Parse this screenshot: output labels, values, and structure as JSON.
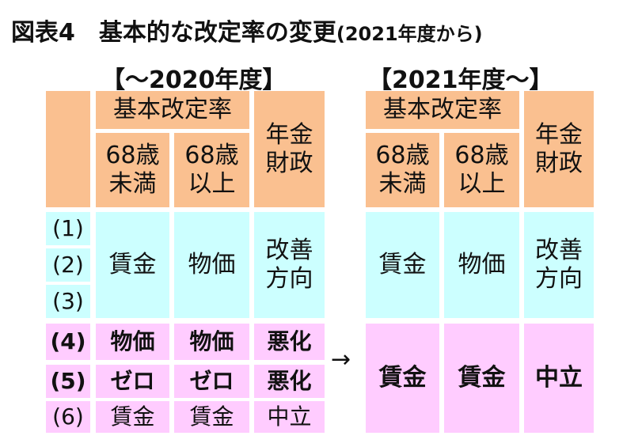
{
  "title": {
    "main": "図表4　基本的な改定率の変更",
    "tail": "(2021年度から)"
  },
  "left": {
    "period": "【～2020年度】",
    "header_group": "基本改定率",
    "col_under68": [
      "68歳",
      "未満"
    ],
    "col_over68": [
      "68歳",
      "以上"
    ],
    "col_finance": [
      "年金",
      "財政"
    ],
    "rows_1_3": {
      "labels": [
        "(1)",
        "(2)",
        "(3)"
      ],
      "under68": "賃金",
      "over68": "物価",
      "finance": [
        "改善",
        "方向"
      ]
    },
    "row4": {
      "label": "(4)",
      "under68": "物価",
      "over68": "物価",
      "finance": "悪化"
    },
    "row5": {
      "label": "(5)",
      "under68": "ゼロ",
      "over68": "ゼロ",
      "finance": "悪化"
    },
    "row6": {
      "label": "(6)",
      "under68": "賃金",
      "over68": "賃金",
      "finance": "中立"
    }
  },
  "arrow": "→",
  "right": {
    "period": "【2021年度～】",
    "header_group": "基本改定率",
    "col_under68": [
      "68歳",
      "未満"
    ],
    "col_over68": [
      "68歳",
      "以上"
    ],
    "col_finance": [
      "年金",
      "財政"
    ],
    "rows_1_3": {
      "under68": "賃金",
      "over68": "物価",
      "finance": [
        "改善",
        "方向"
      ]
    },
    "rows_4_6": {
      "under68": "賃金",
      "over68": "賃金",
      "finance": "中立"
    }
  },
  "colors": {
    "header": "#fac090",
    "improve": "#ccffff",
    "worsen": "#ffccff"
  }
}
